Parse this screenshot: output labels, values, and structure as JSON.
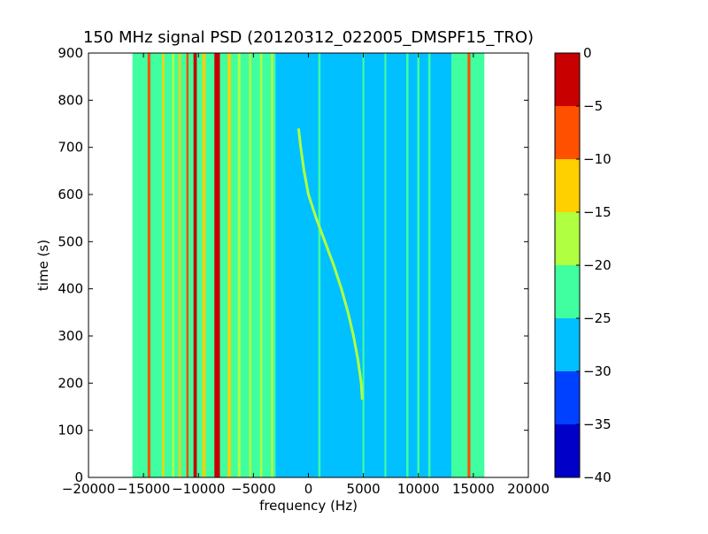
{
  "chart_data": {
    "type": "heatmap",
    "title": "150 MHz signal PSD (20120312_022005_DMSPF15_TRO)",
    "xlabel": "frequency (Hz)",
    "ylabel": "time (s)",
    "xlim": [
      -20000,
      20000
    ],
    "ylim": [
      0,
      900
    ],
    "x_ticks": [
      -20000,
      -15000,
      -10000,
      -5000,
      0,
      5000,
      10000,
      15000,
      20000
    ],
    "x_tick_labels": [
      "−20000",
      "−15000",
      "−10000",
      "−5000",
      "0",
      "5000",
      "10000",
      "15000",
      "20000"
    ],
    "y_ticks": [
      0,
      100,
      200,
      300,
      400,
      500,
      600,
      700,
      800,
      900
    ],
    "y_tick_labels": [
      "0",
      "100",
      "200",
      "300",
      "400",
      "500",
      "600",
      "700",
      "800",
      "900"
    ],
    "data_extent": {
      "freq_min": -16000,
      "freq_max": 16000,
      "time_min": 0,
      "time_max": 900
    },
    "colorbar": {
      "range": [
        -40,
        0
      ],
      "ticks": [
        0,
        -5,
        -10,
        -15,
        -20,
        -25,
        -30,
        -35,
        -40
      ],
      "tick_labels": [
        "0",
        "−5",
        "−10",
        "−15",
        "−20",
        "−25",
        "−30",
        "−35",
        "−40"
      ],
      "levels": [
        {
          "min": -40,
          "max": -35,
          "color": "#0000c8"
        },
        {
          "min": -35,
          "max": -30,
          "color": "#0040ff"
        },
        {
          "min": -30,
          "max": -25,
          "color": "#00c0ff"
        },
        {
          "min": -25,
          "max": -20,
          "color": "#40ffa0"
        },
        {
          "min": -20,
          "max": -15,
          "color": "#b0ff40"
        },
        {
          "min": -15,
          "max": -10,
          "color": "#ffd000"
        },
        {
          "min": -10,
          "max": -5,
          "color": "#ff5000"
        },
        {
          "min": -5,
          "max": 0,
          "color": "#c80000"
        }
      ]
    },
    "background_regions": [
      {
        "from": -16000,
        "to": -3000,
        "level": -22.5
      },
      {
        "from": -3000,
        "to": 13000,
        "level": -27.5
      },
      {
        "from": 13000,
        "to": 16000,
        "level": -22.5
      }
    ],
    "vertical_lines": [
      {
        "freq": -14500,
        "level": -7.5,
        "width_hz": 250,
        "t0": 0,
        "t1": 900
      },
      {
        "freq": -13200,
        "level": -12.5,
        "width_hz": 200,
        "t0": 0,
        "t1": 900
      },
      {
        "freq": -12300,
        "level": -17.5,
        "width_hz": 200,
        "t0": 0,
        "t1": 900
      },
      {
        "freq": -11700,
        "level": -12.5,
        "width_hz": 200,
        "t0": 0,
        "t1": 900
      },
      {
        "freq": -11000,
        "level": -7.5,
        "width_hz": 200,
        "t0": 0,
        "t1": 900
      },
      {
        "freq": -10300,
        "level": -2.5,
        "width_hz": 300,
        "t0": 0,
        "t1": 900
      },
      {
        "freq": -9500,
        "level": -12.5,
        "width_hz": 300,
        "t0": 0,
        "t1": 900
      },
      {
        "freq": -8300,
        "level": -2.5,
        "width_hz": 500,
        "t0": 0,
        "t1": 900
      },
      {
        "freq": -7200,
        "level": -12.5,
        "width_hz": 300,
        "t0": 0,
        "t1": 900
      },
      {
        "freq": -6300,
        "level": -17.5,
        "width_hz": 250,
        "t0": 0,
        "t1": 900
      },
      {
        "freq": -5300,
        "level": -17.5,
        "width_hz": 200,
        "t0": 0,
        "t1": 900
      },
      {
        "freq": -4300,
        "level": -17.5,
        "width_hz": 200,
        "t0": 0,
        "t1": 900
      },
      {
        "freq": -3300,
        "level": -17.5,
        "width_hz": 200,
        "t0": 0,
        "t1": 900
      },
      {
        "freq": 1000,
        "level": -22.5,
        "width_hz": 200,
        "t0": 0,
        "t1": 900
      },
      {
        "freq": 5000,
        "level": -22.5,
        "width_hz": 150,
        "t0": 0,
        "t1": 900
      },
      {
        "freq": 7000,
        "level": -22.5,
        "width_hz": 150,
        "t0": 0,
        "t1": 900
      },
      {
        "freq": 9000,
        "level": -22.5,
        "width_hz": 200,
        "t0": 0,
        "t1": 900
      },
      {
        "freq": 10000,
        "level": -22.5,
        "width_hz": 200,
        "t0": 0,
        "t1": 900
      },
      {
        "freq": 11000,
        "level": -22.5,
        "width_hz": 200,
        "t0": 0,
        "t1": 900
      },
      {
        "freq": 14600,
        "level": -7.5,
        "width_hz": 250,
        "t0": 0,
        "t1": 900
      }
    ],
    "doppler_curve": {
      "level": -17.5,
      "points": [
        [
          -900,
          740
        ],
        [
          -700,
          700
        ],
        [
          -400,
          650
        ],
        [
          0,
          600
        ],
        [
          700,
          550
        ],
        [
          1500,
          500
        ],
        [
          2300,
          450
        ],
        [
          3000,
          400
        ],
        [
          3600,
          350
        ],
        [
          4100,
          300
        ],
        [
          4500,
          250
        ],
        [
          4800,
          200
        ],
        [
          4900,
          165
        ]
      ]
    }
  }
}
